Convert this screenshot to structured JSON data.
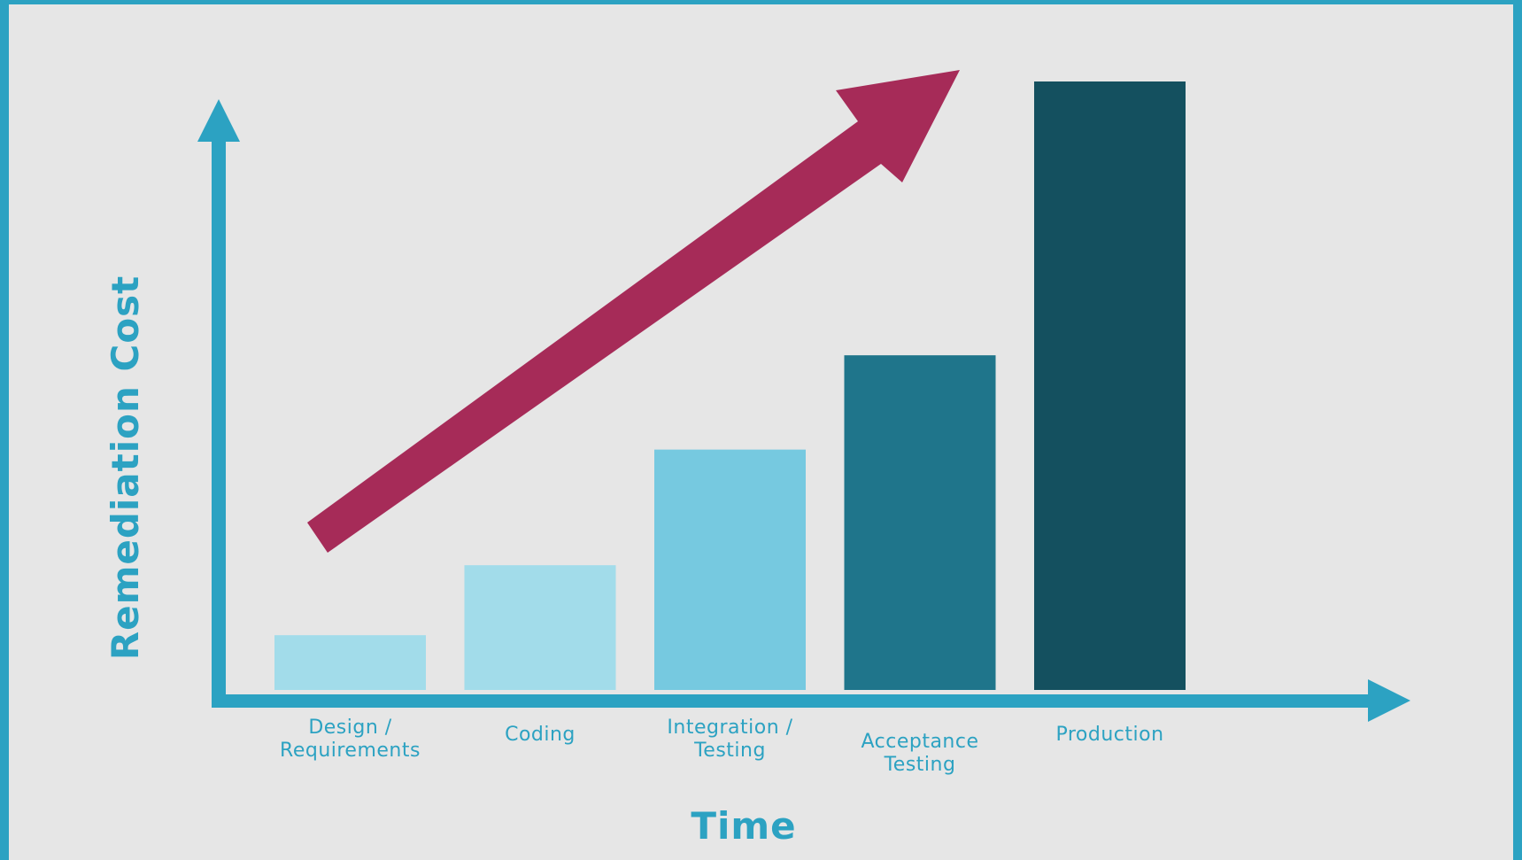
{
  "chart_data": {
    "type": "bar",
    "categories": [
      "Design / Requirements",
      "Coding",
      "Integration / Testing",
      "Acceptance Testing",
      "Production"
    ],
    "category_label_lines": [
      [
        "Design /",
        "Requirements"
      ],
      [
        "Coding"
      ],
      [
        "Integration /",
        "Testing"
      ],
      [
        "Acceptance",
        "Testing"
      ],
      [
        "Production"
      ]
    ],
    "values": [
      9,
      20.5,
      39.5,
      55,
      100
    ],
    "bar_colors": [
      "#a2dcea",
      "#a2dcea",
      "#76c9e0",
      "#1f758b",
      "#14505f"
    ],
    "ylim": [
      0,
      100
    ],
    "xlabel": "Time",
    "ylabel": "Remediation Cost",
    "grid": false,
    "legend": "none",
    "y_tick_labels": false,
    "axis_color": "#2ca2c2",
    "trend_arrow": {
      "direction": "up-right",
      "color": "#a62b58"
    },
    "background": "#e6e6e6"
  }
}
